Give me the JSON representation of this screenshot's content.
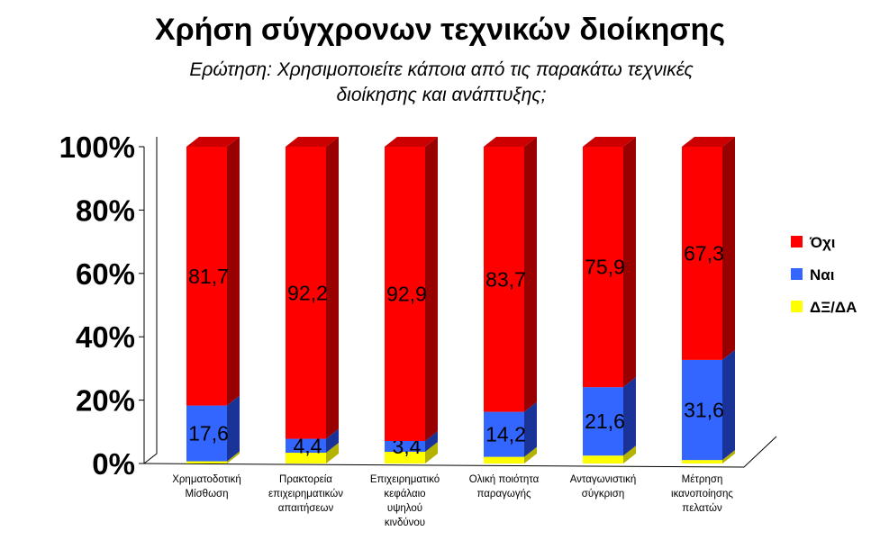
{
  "chart_data": {
    "type": "bar",
    "stacked": true,
    "percent_scale": true,
    "three_d": true,
    "title": "Χρήση σύγχρονων τεχνικών διοίκησης",
    "subtitle_lines": [
      "Ερώτηση:  Χρησιμοποιείτε κάποια από τις παρακάτω τεχνικές",
      "διοίκησης και ανάπτυξης;"
    ],
    "categories": [
      [
        "Χρηματοδοτική",
        "Μίσθωση"
      ],
      [
        "Πρακτορεία",
        "επιχειρηματικών",
        "απαιτήσεων"
      ],
      [
        "Επιχειρηματικό",
        "κεφάλαιο",
        "υψηλού",
        "κινδύνου"
      ],
      [
        "Ολική ποιότητα",
        "παραγωγής"
      ],
      [
        "Ανταγωνιστική",
        "σύγκριση"
      ],
      [
        "Μέτρηση",
        "ικανοποίησης",
        "πελατών"
      ]
    ],
    "series": [
      {
        "name": "ΔΞ/ΔΑ",
        "color": "#ffff00",
        "side_color": "#b3b300",
        "top_color": "#e6e600",
        "values": [
          0.7,
          3.4,
          3.7,
          2.1,
          2.5,
          1.1
        ],
        "labels": [
          "",
          "",
          "",
          "",
          "",
          ""
        ]
      },
      {
        "name": "Ναι",
        "color": "#3366ff",
        "side_color": "#1a3399",
        "top_color": "#2952cc",
        "values": [
          17.6,
          4.4,
          3.4,
          14.2,
          21.6,
          31.6
        ],
        "labels": [
          "17,6",
          "4,4",
          "3,4",
          "14,2",
          "21,6",
          "31,6"
        ]
      },
      {
        "name": "Όχι",
        "color": "#ff0000",
        "side_color": "#990000",
        "top_color": "#cc0000",
        "values": [
          81.7,
          92.2,
          92.9,
          83.7,
          75.9,
          67.3
        ],
        "labels": [
          "81,7",
          "92,2",
          "92,9",
          "83,7",
          "75,9",
          "67,3"
        ]
      }
    ],
    "legend_order": [
      "Όχι",
      "Ναι",
      "ΔΞ/ΔΑ"
    ],
    "y_ticks": [
      "0%",
      "20%",
      "40%",
      "60%",
      "80%",
      "100%"
    ],
    "ylim": [
      0,
      100
    ],
    "xlabel": "",
    "ylabel": "",
    "grid": false,
    "legend_position": "right"
  }
}
